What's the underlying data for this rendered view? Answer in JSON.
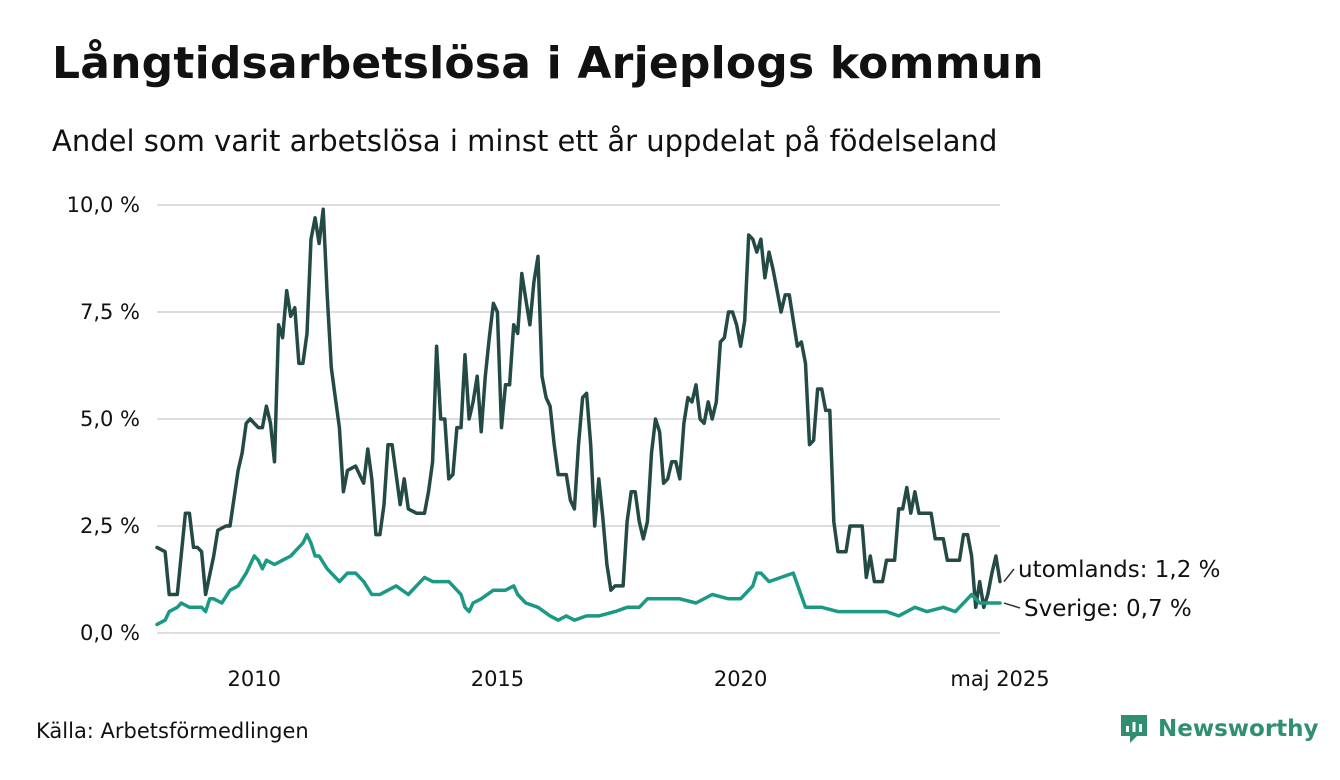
{
  "header": {
    "title": "Långtidsarbetslösa i Arjeplogs kommun",
    "subtitle": "Andel som varit arbetslösa i minst ett år uppdelat på födelseland"
  },
  "footer": {
    "source": "Källa: Arbetsförmedlingen",
    "brand": "Newsworthy"
  },
  "colors": {
    "utomlands": "#244a45",
    "sverige": "#1b9985",
    "grid": "#dddddd",
    "brand": "#2f8f6f"
  },
  "chart_data": {
    "type": "line",
    "x_unit": "month",
    "x_range": [
      "2008-01",
      "2025-05"
    ],
    "ylim": [
      0,
      10
    ],
    "y_ticks": [
      {
        "value": 0,
        "label": "0,0 %"
      },
      {
        "value": 2.5,
        "label": "2,5 %"
      },
      {
        "value": 5,
        "label": "5,0 %"
      },
      {
        "value": 7.5,
        "label": "7,5 %"
      },
      {
        "value": 10,
        "label": "10,0 %"
      }
    ],
    "x_ticks": [
      {
        "value": "2010-01",
        "label": "2010"
      },
      {
        "value": "2015-01",
        "label": "2015"
      },
      {
        "value": "2020-01",
        "label": "2020"
      },
      {
        "value": "2025-05",
        "label": "maj 2025"
      }
    ],
    "grid": true,
    "legend": "end-of-line labels",
    "series": [
      {
        "key": "utomlands",
        "end_label": "utomlands: 1,2 %",
        "color": "#244a45",
        "points": [
          [
            "2008-01",
            2.0
          ],
          [
            "2008-03",
            1.9
          ],
          [
            "2008-04",
            0.9
          ],
          [
            "2008-06",
            0.9
          ],
          [
            "2008-08",
            2.8
          ],
          [
            "2008-09",
            2.8
          ],
          [
            "2008-10",
            2.0
          ],
          [
            "2008-11",
            2.0
          ],
          [
            "2008-12",
            1.9
          ],
          [
            "2009-01",
            0.9
          ],
          [
            "2009-03",
            1.8
          ],
          [
            "2009-04",
            2.4
          ],
          [
            "2009-06",
            2.5
          ],
          [
            "2009-07",
            2.5
          ],
          [
            "2009-09",
            3.8
          ],
          [
            "2009-10",
            4.2
          ],
          [
            "2009-11",
            4.9
          ],
          [
            "2009-12",
            5.0
          ],
          [
            "2010-02",
            4.8
          ],
          [
            "2010-03",
            4.8
          ],
          [
            "2010-04",
            5.3
          ],
          [
            "2010-05",
            4.9
          ],
          [
            "2010-06",
            4.0
          ],
          [
            "2010-07",
            7.2
          ],
          [
            "2010-08",
            6.9
          ],
          [
            "2010-09",
            8.0
          ],
          [
            "2010-10",
            7.4
          ],
          [
            "2010-11",
            7.6
          ],
          [
            "2010-12",
            6.3
          ],
          [
            "2011-01",
            6.3
          ],
          [
            "2011-02",
            7.0
          ],
          [
            "2011-03",
            9.2
          ],
          [
            "2011-04",
            9.7
          ],
          [
            "2011-05",
            9.1
          ],
          [
            "2011-06",
            9.9
          ],
          [
            "2011-07",
            7.9
          ],
          [
            "2011-08",
            6.2
          ],
          [
            "2011-09",
            5.5
          ],
          [
            "2011-10",
            4.8
          ],
          [
            "2011-11",
            3.3
          ],
          [
            "2011-12",
            3.8
          ],
          [
            "2012-02",
            3.9
          ],
          [
            "2012-04",
            3.5
          ],
          [
            "2012-05",
            4.3
          ],
          [
            "2012-06",
            3.6
          ],
          [
            "2012-07",
            2.3
          ],
          [
            "2012-08",
            2.3
          ],
          [
            "2012-09",
            3.0
          ],
          [
            "2012-10",
            4.4
          ],
          [
            "2012-11",
            4.4
          ],
          [
            "2013-01",
            3.0
          ],
          [
            "2013-02",
            3.6
          ],
          [
            "2013-03",
            2.9
          ],
          [
            "2013-05",
            2.8
          ],
          [
            "2013-06",
            2.8
          ],
          [
            "2013-07",
            2.8
          ],
          [
            "2013-08",
            3.3
          ],
          [
            "2013-09",
            4.0
          ],
          [
            "2013-10",
            6.7
          ],
          [
            "2013-11",
            5.0
          ],
          [
            "2013-12",
            5.0
          ],
          [
            "2014-01",
            3.6
          ],
          [
            "2014-02",
            3.7
          ],
          [
            "2014-03",
            4.8
          ],
          [
            "2014-04",
            4.8
          ],
          [
            "2014-05",
            6.5
          ],
          [
            "2014-06",
            5.0
          ],
          [
            "2014-07",
            5.4
          ],
          [
            "2014-08",
            6.0
          ],
          [
            "2014-09",
            4.7
          ],
          [
            "2014-10",
            6.0
          ],
          [
            "2014-11",
            6.9
          ],
          [
            "2014-12",
            7.7
          ],
          [
            "2015-01",
            7.5
          ],
          [
            "2015-02",
            4.8
          ],
          [
            "2015-03",
            5.8
          ],
          [
            "2015-04",
            5.8
          ],
          [
            "2015-05",
            7.2
          ],
          [
            "2015-06",
            7.0
          ],
          [
            "2015-07",
            8.4
          ],
          [
            "2015-08",
            7.8
          ],
          [
            "2015-09",
            7.2
          ],
          [
            "2015-10",
            8.2
          ],
          [
            "2015-11",
            8.8
          ],
          [
            "2015-12",
            6.0
          ],
          [
            "2016-01",
            5.5
          ],
          [
            "2016-02",
            5.3
          ],
          [
            "2016-03",
            4.4
          ],
          [
            "2016-04",
            3.7
          ],
          [
            "2016-06",
            3.7
          ],
          [
            "2016-07",
            3.1
          ],
          [
            "2016-08",
            2.9
          ],
          [
            "2016-09",
            4.4
          ],
          [
            "2016-10",
            5.5
          ],
          [
            "2016-11",
            5.6
          ],
          [
            "2016-12",
            4.4
          ],
          [
            "2017-01",
            2.5
          ],
          [
            "2017-02",
            3.6
          ],
          [
            "2017-03",
            2.7
          ],
          [
            "2017-04",
            1.6
          ],
          [
            "2017-05",
            1.0
          ],
          [
            "2017-06",
            1.1
          ],
          [
            "2017-08",
            1.1
          ],
          [
            "2017-09",
            2.6
          ],
          [
            "2017-10",
            3.3
          ],
          [
            "2017-11",
            3.3
          ],
          [
            "2017-12",
            2.6
          ],
          [
            "2018-01",
            2.2
          ],
          [
            "2018-02",
            2.6
          ],
          [
            "2018-03",
            4.2
          ],
          [
            "2018-04",
            5.0
          ],
          [
            "2018-05",
            4.7
          ],
          [
            "2018-06",
            3.5
          ],
          [
            "2018-07",
            3.6
          ],
          [
            "2018-08",
            4.0
          ],
          [
            "2018-09",
            4.0
          ],
          [
            "2018-10",
            3.6
          ],
          [
            "2018-11",
            4.9
          ],
          [
            "2018-12",
            5.5
          ],
          [
            "2019-01",
            5.4
          ],
          [
            "2019-02",
            5.8
          ],
          [
            "2019-03",
            5.0
          ],
          [
            "2019-04",
            4.9
          ],
          [
            "2019-05",
            5.4
          ],
          [
            "2019-06",
            5.0
          ],
          [
            "2019-07",
            5.4
          ],
          [
            "2019-08",
            6.8
          ],
          [
            "2019-09",
            6.9
          ],
          [
            "2019-10",
            7.5
          ],
          [
            "2019-11",
            7.5
          ],
          [
            "2019-12",
            7.2
          ],
          [
            "2020-01",
            6.7
          ],
          [
            "2020-02",
            7.3
          ],
          [
            "2020-03",
            9.3
          ],
          [
            "2020-04",
            9.2
          ],
          [
            "2020-05",
            8.9
          ],
          [
            "2020-06",
            9.2
          ],
          [
            "2020-07",
            8.3
          ],
          [
            "2020-08",
            8.9
          ],
          [
            "2020-09",
            8.5
          ],
          [
            "2020-10",
            8.0
          ],
          [
            "2020-11",
            7.5
          ],
          [
            "2020-12",
            7.9
          ],
          [
            "2021-01",
            7.9
          ],
          [
            "2021-02",
            7.3
          ],
          [
            "2021-03",
            6.7
          ],
          [
            "2021-04",
            6.8
          ],
          [
            "2021-05",
            6.3
          ],
          [
            "2021-06",
            4.4
          ],
          [
            "2021-07",
            4.5
          ],
          [
            "2021-08",
            5.7
          ],
          [
            "2021-09",
            5.7
          ],
          [
            "2021-10",
            5.2
          ],
          [
            "2021-11",
            5.2
          ],
          [
            "2021-12",
            2.6
          ],
          [
            "2022-01",
            1.9
          ],
          [
            "2022-03",
            1.9
          ],
          [
            "2022-04",
            2.5
          ],
          [
            "2022-07",
            2.5
          ],
          [
            "2022-08",
            1.3
          ],
          [
            "2022-09",
            1.8
          ],
          [
            "2022-10",
            1.2
          ],
          [
            "2022-12",
            1.2
          ],
          [
            "2023-01",
            1.7
          ],
          [
            "2023-03",
            1.7
          ],
          [
            "2023-04",
            2.9
          ],
          [
            "2023-05",
            2.9
          ],
          [
            "2023-06",
            3.4
          ],
          [
            "2023-07",
            2.8
          ],
          [
            "2023-08",
            3.3
          ],
          [
            "2023-09",
            2.8
          ],
          [
            "2023-12",
            2.8
          ],
          [
            "2024-01",
            2.2
          ],
          [
            "2024-03",
            2.2
          ],
          [
            "2024-04",
            1.7
          ],
          [
            "2024-07",
            1.7
          ],
          [
            "2024-08",
            2.3
          ],
          [
            "2024-09",
            2.3
          ],
          [
            "2024-10",
            1.8
          ],
          [
            "2024-11",
            0.6
          ],
          [
            "2024-12",
            1.2
          ],
          [
            "2025-01",
            0.6
          ],
          [
            "2025-02",
            0.9
          ],
          [
            "2025-03",
            1.4
          ],
          [
            "2025-04",
            1.8
          ],
          [
            "2025-05",
            1.2
          ]
        ]
      },
      {
        "key": "sverige",
        "end_label": "Sverige: 0,7 %",
        "color": "#1b9985",
        "points": [
          [
            "2008-01",
            0.2
          ],
          [
            "2008-03",
            0.3
          ],
          [
            "2008-04",
            0.5
          ],
          [
            "2008-06",
            0.6
          ],
          [
            "2008-07",
            0.7
          ],
          [
            "2008-09",
            0.6
          ],
          [
            "2008-12",
            0.6
          ],
          [
            "2009-01",
            0.5
          ],
          [
            "2009-02",
            0.8
          ],
          [
            "2009-03",
            0.8
          ],
          [
            "2009-05",
            0.7
          ],
          [
            "2009-07",
            1.0
          ],
          [
            "2009-09",
            1.1
          ],
          [
            "2009-11",
            1.4
          ],
          [
            "2010-01",
            1.8
          ],
          [
            "2010-02",
            1.7
          ],
          [
            "2010-03",
            1.5
          ],
          [
            "2010-04",
            1.7
          ],
          [
            "2010-06",
            1.6
          ],
          [
            "2010-08",
            1.7
          ],
          [
            "2010-10",
            1.8
          ],
          [
            "2011-01",
            2.1
          ],
          [
            "2011-02",
            2.3
          ],
          [
            "2011-03",
            2.1
          ],
          [
            "2011-04",
            1.8
          ],
          [
            "2011-05",
            1.8
          ],
          [
            "2011-07",
            1.5
          ],
          [
            "2011-10",
            1.2
          ],
          [
            "2011-12",
            1.4
          ],
          [
            "2012-02",
            1.4
          ],
          [
            "2012-04",
            1.2
          ],
          [
            "2012-06",
            0.9
          ],
          [
            "2012-08",
            0.9
          ],
          [
            "2012-10",
            1.0
          ],
          [
            "2012-12",
            1.1
          ],
          [
            "2013-03",
            0.9
          ],
          [
            "2013-05",
            1.1
          ],
          [
            "2013-07",
            1.3
          ],
          [
            "2013-09",
            1.2
          ],
          [
            "2014-01",
            1.2
          ],
          [
            "2014-04",
            0.9
          ],
          [
            "2014-05",
            0.6
          ],
          [
            "2014-06",
            0.5
          ],
          [
            "2014-07",
            0.7
          ],
          [
            "2014-09",
            0.8
          ],
          [
            "2014-12",
            1.0
          ],
          [
            "2015-03",
            1.0
          ],
          [
            "2015-05",
            1.1
          ],
          [
            "2015-06",
            0.9
          ],
          [
            "2015-08",
            0.7
          ],
          [
            "2015-11",
            0.6
          ],
          [
            "2016-02",
            0.4
          ],
          [
            "2016-04",
            0.3
          ],
          [
            "2016-06",
            0.4
          ],
          [
            "2016-08",
            0.3
          ],
          [
            "2016-11",
            0.4
          ],
          [
            "2017-02",
            0.4
          ],
          [
            "2017-06",
            0.5
          ],
          [
            "2017-09",
            0.6
          ],
          [
            "2017-12",
            0.6
          ],
          [
            "2018-02",
            0.8
          ],
          [
            "2018-06",
            0.8
          ],
          [
            "2018-10",
            0.8
          ],
          [
            "2019-02",
            0.7
          ],
          [
            "2019-06",
            0.9
          ],
          [
            "2019-10",
            0.8
          ],
          [
            "2020-01",
            0.8
          ],
          [
            "2020-04",
            1.1
          ],
          [
            "2020-05",
            1.4
          ],
          [
            "2020-06",
            1.4
          ],
          [
            "2020-08",
            1.2
          ],
          [
            "2020-11",
            1.3
          ],
          [
            "2021-02",
            1.4
          ],
          [
            "2021-05",
            0.6
          ],
          [
            "2021-09",
            0.6
          ],
          [
            "2022-01",
            0.5
          ],
          [
            "2022-05",
            0.5
          ],
          [
            "2022-09",
            0.5
          ],
          [
            "2023-01",
            0.5
          ],
          [
            "2023-04",
            0.4
          ],
          [
            "2023-08",
            0.6
          ],
          [
            "2023-11",
            0.5
          ],
          [
            "2024-03",
            0.6
          ],
          [
            "2024-06",
            0.5
          ],
          [
            "2024-09",
            0.8
          ],
          [
            "2024-10",
            0.9
          ],
          [
            "2024-12",
            0.7
          ],
          [
            "2025-05",
            0.7
          ]
        ]
      }
    ]
  }
}
